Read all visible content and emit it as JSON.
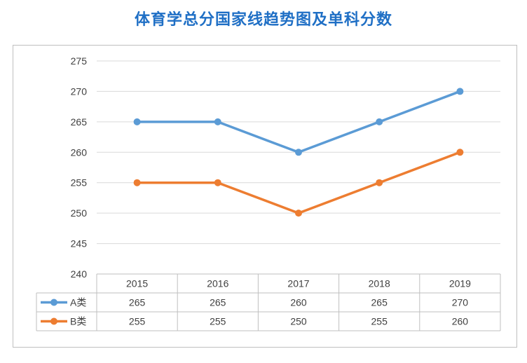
{
  "title": "体育学总分国家线趋势图及单科分数",
  "chart_data": {
    "type": "line",
    "categories": [
      "2015",
      "2016",
      "2017",
      "2018",
      "2019"
    ],
    "series": [
      {
        "name": "A类",
        "values": [
          265,
          265,
          260,
          265,
          270
        ],
        "color": "#5b9bd5"
      },
      {
        "name": "B类",
        "values": [
          255,
          255,
          250,
          255,
          260
        ],
        "color": "#ed7d31"
      }
    ],
    "yticks": [
      240,
      245,
      250,
      255,
      260,
      265,
      270,
      275
    ],
    "ylim": [
      240,
      275
    ],
    "grid": true,
    "legend": "data-table"
  }
}
